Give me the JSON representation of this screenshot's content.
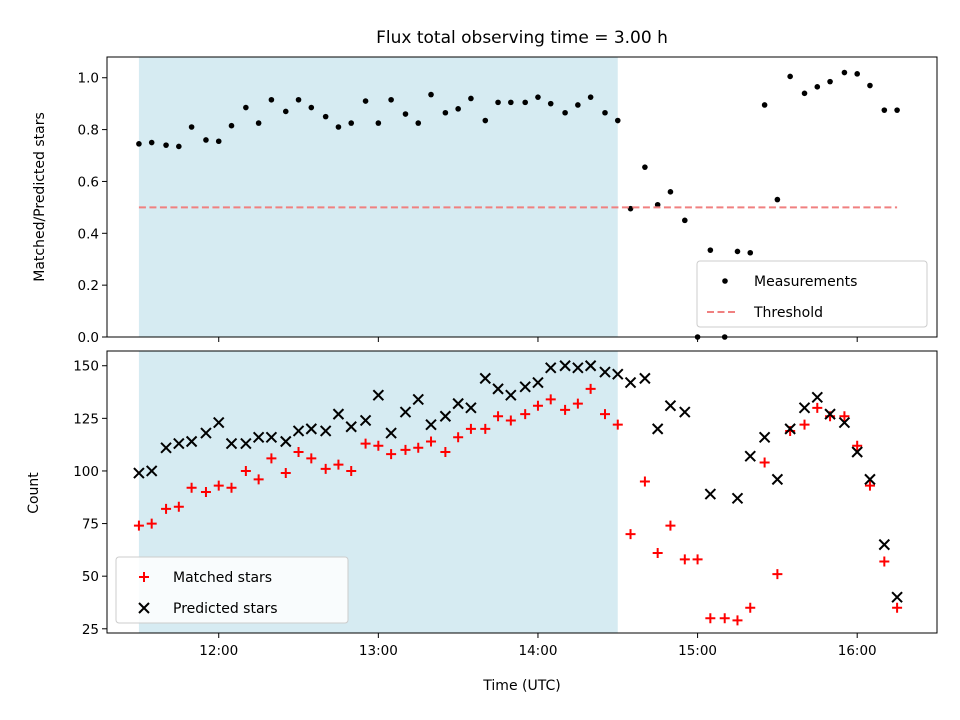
{
  "chart_data": {
    "type": "scatter",
    "title": "Flux total observing time = 3.00 h",
    "xlabel": "Time (UTC)",
    "x_unit": "hours UTC",
    "xlim": [
      11.3,
      16.5
    ],
    "xticks": [
      12,
      13,
      14,
      15,
      16
    ],
    "xtick_labels": [
      "12:00",
      "13:00",
      "14:00",
      "15:00",
      "16:00"
    ],
    "shaded_interval": [
      11.5,
      14.5
    ],
    "shade_color": "#add8e6",
    "panels": [
      {
        "id": "ratio",
        "ylabel": "Matched/Predicted stars",
        "ylim": [
          0,
          1.08
        ],
        "yticks": [
          0,
          0.2,
          0.4,
          0.6,
          0.8,
          1.0
        ],
        "ytick_labels": [
          "0.0",
          "0.2",
          "0.4",
          "0.6",
          "0.8",
          "1.0"
        ],
        "legend_position": "lower right",
        "series": [
          {
            "name": "Measurements",
            "marker": "dot",
            "color": "#000000",
            "x": [
              11.5,
              11.58,
              11.67,
              11.75,
              11.83,
              11.92,
              12.0,
              12.08,
              12.17,
              12.25,
              12.33,
              12.42,
              12.5,
              12.58,
              12.67,
              12.75,
              12.83,
              12.92,
              13.0,
              13.08,
              13.17,
              13.25,
              13.33,
              13.42,
              13.5,
              13.58,
              13.67,
              13.75,
              13.83,
              13.92,
              14.0,
              14.08,
              14.17,
              14.25,
              14.33,
              14.42,
              14.5,
              14.58,
              14.67,
              14.75,
              14.83,
              14.92,
              15.0,
              15.08,
              15.17,
              15.25,
              15.33,
              15.42,
              15.5,
              15.58,
              15.67,
              15.75,
              15.83,
              15.92,
              16.0,
              16.08,
              16.17,
              16.25
            ],
            "y": [
              0.745,
              0.75,
              0.74,
              0.735,
              0.81,
              0.76,
              0.755,
              0.815,
              0.885,
              0.825,
              0.915,
              0.87,
              0.915,
              0.885,
              0.85,
              0.81,
              0.825,
              0.91,
              0.825,
              0.915,
              0.86,
              0.825,
              0.935,
              0.865,
              0.88,
              0.92,
              0.835,
              0.905,
              0.905,
              0.905,
              0.925,
              0.9,
              0.865,
              0.895,
              0.925,
              0.865,
              0.835,
              0.495,
              0.655,
              0.51,
              0.56,
              0.45,
              0.0,
              0.335,
              0.0,
              0.33,
              0.325,
              0.895,
              0.53,
              1.005,
              0.94,
              0.965,
              0.985,
              1.02,
              1.015,
              0.97,
              0.875,
              0.875
            ]
          },
          {
            "name": "Threshold",
            "marker": "dashed-line",
            "color": "#f08080",
            "x": [
              11.5,
              16.25
            ],
            "y": [
              0.5,
              0.5
            ]
          }
        ]
      },
      {
        "id": "count",
        "ylabel": "Count",
        "ylim": [
          23,
          157
        ],
        "yticks": [
          25,
          50,
          75,
          100,
          125,
          150
        ],
        "ytick_labels": [
          "25",
          "50",
          "75",
          "100",
          "125",
          "150"
        ],
        "legend_position": "lower left",
        "series": [
          {
            "name": "Matched stars",
            "marker": "plus",
            "color": "#ff0000",
            "x": [
              11.5,
              11.58,
              11.67,
              11.75,
              11.83,
              11.92,
              12.0,
              12.08,
              12.17,
              12.25,
              12.33,
              12.42,
              12.5,
              12.58,
              12.67,
              12.75,
              12.83,
              12.92,
              13.0,
              13.08,
              13.17,
              13.25,
              13.33,
              13.42,
              13.5,
              13.58,
              13.67,
              13.75,
              13.83,
              13.92,
              14.0,
              14.08,
              14.17,
              14.25,
              14.33,
              14.42,
              14.5,
              14.58,
              14.67,
              14.75,
              14.83,
              14.92,
              15.0,
              15.08,
              15.17,
              15.25,
              15.33,
              15.42,
              15.5,
              15.58,
              15.67,
              15.75,
              15.83,
              15.92,
              16.0,
              16.08,
              16.17,
              16.25
            ],
            "y": [
              74,
              75,
              82,
              83,
              92,
              90,
              93,
              92,
              100,
              96,
              106,
              99,
              109,
              106,
              101,
              103,
              100,
              113,
              112,
              108,
              110,
              111,
              114,
              109,
              116,
              120,
              120,
              126,
              124,
              127,
              131,
              134,
              129,
              132,
              139,
              127,
              122,
              70,
              95,
              61,
              74,
              58,
              58,
              30,
              30,
              29,
              35,
              104,
              51,
              119,
              122,
              130,
              126,
              126,
              112,
              93,
              57,
              35
            ]
          },
          {
            "name": "Predicted stars",
            "marker": "x",
            "color": "#000000",
            "x": [
              11.5,
              11.58,
              11.67,
              11.75,
              11.83,
              11.92,
              12.0,
              12.08,
              12.17,
              12.25,
              12.33,
              12.42,
              12.5,
              12.58,
              12.67,
              12.75,
              12.83,
              12.92,
              13.0,
              13.08,
              13.17,
              13.25,
              13.33,
              13.42,
              13.5,
              13.58,
              13.67,
              13.75,
              13.83,
              13.92,
              14.0,
              14.08,
              14.17,
              14.25,
              14.33,
              14.42,
              14.5,
              14.58,
              14.67,
              14.75,
              14.83,
              14.92,
              15.0,
              15.08,
              15.17,
              15.25,
              15.33,
              15.42,
              15.5,
              15.58,
              15.67,
              15.75,
              15.83,
              15.92,
              16.0,
              16.08,
              16.17,
              16.25
            ],
            "y": [
              99,
              100,
              111,
              113,
              114,
              118,
              123,
              113,
              113,
              116,
              116,
              114,
              119,
              120,
              119,
              127,
              121,
              124,
              136,
              118,
              128,
              134,
              122,
              126,
              132,
              130,
              144,
              139,
              136,
              140,
              142,
              149,
              150,
              149,
              150,
              147,
              146,
              142,
              144,
              120,
              131,
              128,
              null,
              89,
              null,
              87,
              107,
              116,
              96,
              120,
              130,
              135,
              127,
              123,
              109,
              96,
              65,
              40
            ]
          }
        ]
      }
    ]
  }
}
